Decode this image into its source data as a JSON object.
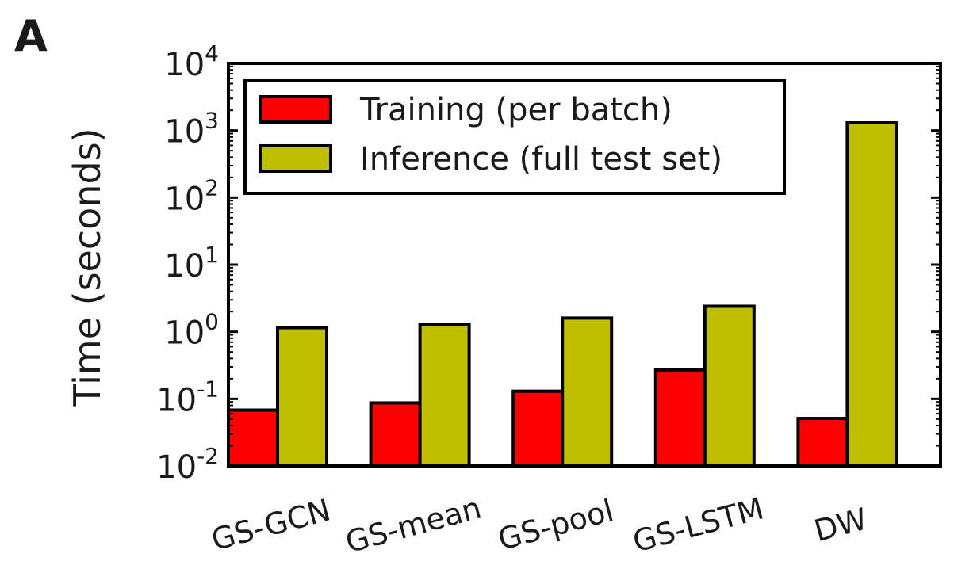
{
  "panel_label": "A",
  "chart_data": {
    "type": "bar",
    "title": "",
    "xlabel": "",
    "ylabel": "Time (seconds)",
    "yscale": "log",
    "ylim": [
      0.01,
      10000
    ],
    "y_ticks": [
      {
        "value": 0.01,
        "base": "10",
        "exp": "-2"
      },
      {
        "value": 0.1,
        "base": "10",
        "exp": "-1"
      },
      {
        "value": 1,
        "base": "10",
        "exp": "0"
      },
      {
        "value": 10,
        "base": "10",
        "exp": "1"
      },
      {
        "value": 100,
        "base": "10",
        "exp": "2"
      },
      {
        "value": 1000,
        "base": "10",
        "exp": "3"
      },
      {
        "value": 10000,
        "base": "10",
        "exp": "4"
      }
    ],
    "categories": [
      "GS-GCN",
      "GS-mean",
      "GS-pool",
      "GS-LSTM",
      "DW"
    ],
    "series": [
      {
        "name": "Training (per batch)",
        "color": "#ff0000",
        "values": [
          0.068,
          0.087,
          0.13,
          0.27,
          0.051
        ]
      },
      {
        "name": "Inference (full test set)",
        "color": "#bfbf00",
        "values": [
          1.15,
          1.3,
          1.6,
          2.4,
          1300
        ]
      }
    ],
    "legend_position": "top-left",
    "grid": false
  }
}
